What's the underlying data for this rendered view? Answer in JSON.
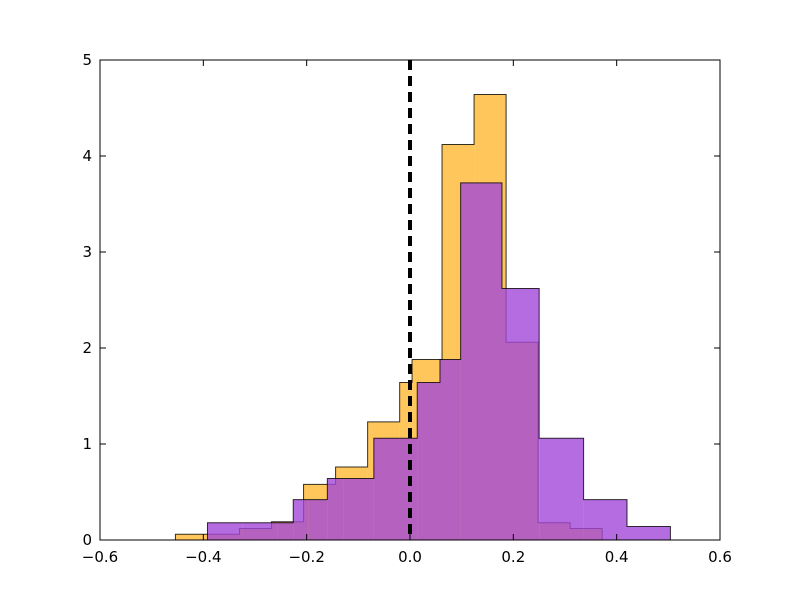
{
  "chart_data": {
    "type": "histogram",
    "title": "",
    "xlabel": "",
    "ylabel": "",
    "xlim": [
      -0.6,
      0.6
    ],
    "ylim": [
      0,
      5
    ],
    "grid": false,
    "x_ticks": [
      -0.6,
      -0.4,
      -0.2,
      0.0,
      0.2,
      0.4,
      0.6
    ],
    "x_tick_labels": [
      "−0.6",
      "−0.4",
      "−0.2",
      "0.0",
      "0.2",
      "0.4",
      "0.6"
    ],
    "y_ticks": [
      0,
      1,
      2,
      3,
      4,
      5
    ],
    "y_tick_labels": [
      "0",
      "1",
      "2",
      "3",
      "4",
      "5"
    ],
    "reference_line": {
      "x": 0.0,
      "style": "dashed",
      "color": "#000000"
    },
    "series": [
      {
        "color": "#ffb833",
        "edges": [
          -0.454,
          -0.392,
          -0.33,
          -0.268,
          -0.206,
          -0.144,
          -0.082,
          -0.02,
          0.004,
          0.062,
          0.124,
          0.186,
          0.248,
          0.31,
          0.372
        ],
        "values": [
          0.06,
          0.06,
          0.12,
          0.19,
          0.58,
          0.76,
          1.23,
          1.64,
          1.88,
          4.12,
          4.64,
          2.06,
          0.18,
          0.12
        ]
      },
      {
        "color": "#a347d9",
        "edges": [
          -0.392,
          -0.324,
          -0.256,
          -0.226,
          -0.196,
          -0.16,
          -0.128,
          -0.07,
          0.014,
          0.058,
          0.098,
          0.178,
          0.25,
          0.336,
          0.42,
          0.504
        ],
        "values": [
          0.18,
          0.18,
          0.18,
          0.42,
          0.42,
          0.64,
          0.64,
          1.06,
          1.64,
          1.88,
          3.72,
          2.62,
          1.06,
          0.42,
          0.14
        ]
      }
    ]
  }
}
